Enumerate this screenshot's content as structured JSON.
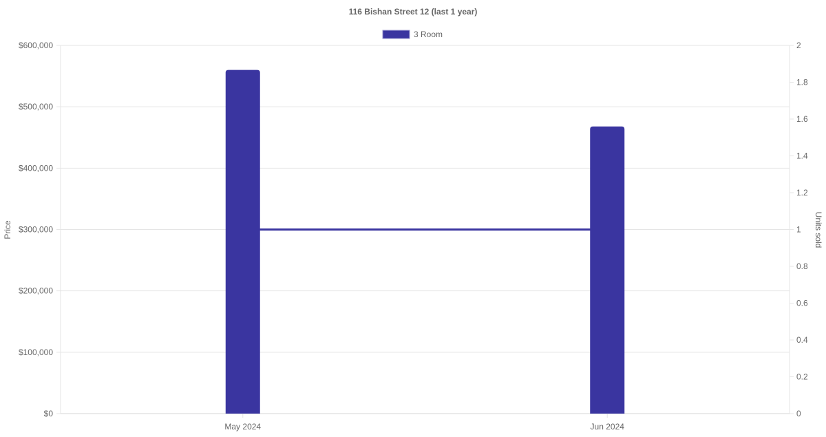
{
  "chart_data": {
    "type": "bar+line",
    "title": "116 Bishan Street 12 (last 1 year)",
    "categories": [
      "May 2024",
      "Jun 2024"
    ],
    "series": [
      {
        "name": "3 Room",
        "type": "bar",
        "axis": "left",
        "values": [
          560000,
          468000
        ],
        "color": "#3a35a0"
      },
      {
        "type": "line",
        "axis": "right",
        "values": [
          1,
          1
        ],
        "color": "#3a35a0"
      }
    ],
    "y_left": {
      "label": "Price",
      "lim": [
        0,
        600000
      ],
      "ticks": [
        "$0",
        "$100,000",
        "$200,000",
        "$300,000",
        "$400,000",
        "$500,000",
        "$600,000"
      ]
    },
    "y_right": {
      "label": "Units sold",
      "lim": [
        0,
        2
      ],
      "ticks": [
        "0",
        "0.2",
        "0.4",
        "0.6",
        "0.8",
        "1",
        "1.2",
        "1.4",
        "1.6",
        "1.8",
        "2"
      ]
    },
    "legend": {
      "position": "top",
      "entries": [
        "3 Room"
      ]
    },
    "grid": true
  }
}
